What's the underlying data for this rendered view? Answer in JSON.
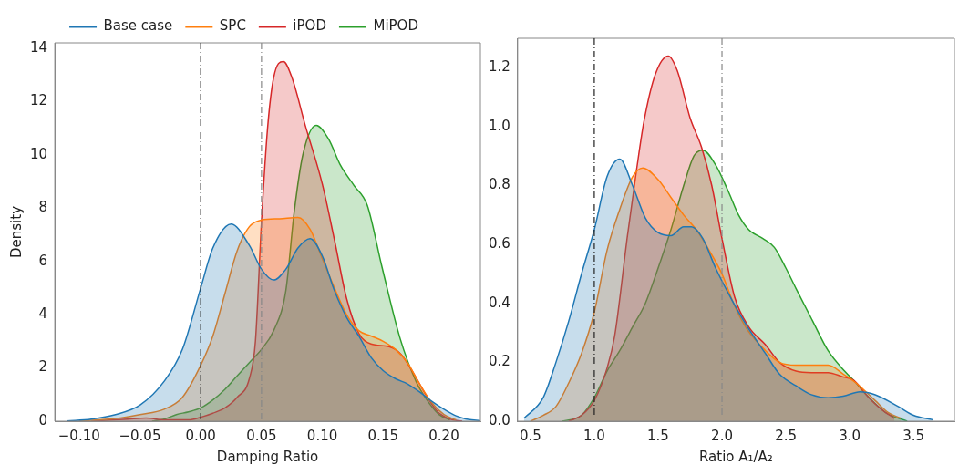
{
  "chart_data": [
    {
      "type": "area",
      "xlabel": "Damping Ratio",
      "ylabel": "Density",
      "legend": "top",
      "grid": false,
      "marker": "none",
      "line_style": "solid",
      "xlim": [
        -0.12,
        0.23
      ],
      "ylim": [
        0,
        14.2
      ],
      "xticks": [
        {
          "value": -0.1,
          "label": "−0.10"
        },
        {
          "value": -0.05,
          "label": "−0.05"
        },
        {
          "value": 0,
          "label": "0.00"
        },
        {
          "value": 0.05,
          "label": "0.05"
        },
        {
          "value": 0.1,
          "label": "0.10"
        },
        {
          "value": 0.15,
          "label": "0.15"
        },
        {
          "value": 0.2,
          "label": "0.20"
        }
      ],
      "yticks": [
        0,
        2,
        4,
        6,
        8,
        10,
        12,
        14
      ],
      "ref_lines": [
        {
          "axis": "x",
          "value": 0,
          "color": "#222222",
          "line_style": "dashed"
        },
        {
          "axis": "x",
          "value": 0.05,
          "color": "#888888",
          "line_style": "dashed"
        }
      ],
      "series": [
        {
          "name": "Base case",
          "color": "#1f77b4",
          "x": [
            -0.11,
            -0.09,
            -0.07,
            -0.05,
            -0.03,
            -0.015,
            0.0,
            0.01,
            0.025,
            0.04,
            0.05,
            0.06,
            0.07,
            0.08,
            0.09,
            0.1,
            0.11,
            0.12,
            0.13,
            0.14,
            0.15,
            0.16,
            0.17,
            0.18,
            0.19,
            0.2,
            0.21,
            0.22,
            0.23
          ],
          "values": [
            0.01,
            0.08,
            0.25,
            0.6,
            1.5,
            2.7,
            5.0,
            6.5,
            7.4,
            6.6,
            5.7,
            5.3,
            5.7,
            6.5,
            6.85,
            6.2,
            4.9,
            3.9,
            3.2,
            2.4,
            1.9,
            1.6,
            1.4,
            1.1,
            0.75,
            0.45,
            0.2,
            0.07,
            0.02
          ]
        },
        {
          "name": "SPC",
          "color": "#ff7f0e",
          "x": [
            -0.1,
            -0.07,
            -0.05,
            -0.03,
            -0.015,
            0.0,
            0.01,
            0.02,
            0.03,
            0.04,
            0.05,
            0.065,
            0.08,
            0.09,
            0.1,
            0.11,
            0.12,
            0.13,
            0.14,
            0.15,
            0.16,
            0.17,
            0.18,
            0.19,
            0.2,
            0.21
          ],
          "values": [
            0.01,
            0.1,
            0.25,
            0.45,
            0.9,
            2.1,
            3.2,
            4.8,
            6.4,
            7.3,
            7.55,
            7.6,
            7.65,
            7.2,
            6.1,
            5.0,
            4.0,
            3.4,
            3.2,
            3.0,
            2.7,
            2.2,
            1.4,
            0.7,
            0.25,
            0.05
          ]
        },
        {
          "name": "iPOD",
          "color": "#d62728",
          "x": [
            -0.09,
            -0.06,
            -0.045,
            -0.03,
            -0.01,
            0.0,
            0.01,
            0.02,
            0.03,
            0.04,
            0.045,
            0.05,
            0.055,
            0.06,
            0.068,
            0.075,
            0.086,
            0.1,
            0.11,
            0.12,
            0.13,
            0.14,
            0.155,
            0.165,
            0.175,
            0.185,
            0.195,
            0.205,
            0.215
          ],
          "values": [
            0.0,
            0.08,
            0.12,
            0.05,
            0.05,
            0.15,
            0.3,
            0.5,
            0.9,
            1.6,
            3.0,
            7.5,
            11.0,
            12.9,
            13.5,
            12.9,
            11.1,
            8.9,
            6.8,
            4.6,
            3.3,
            2.9,
            2.8,
            2.5,
            1.8,
            1.0,
            0.35,
            0.08,
            0.0
          ]
        },
        {
          "name": "MiPOD",
          "color": "#2ca02c",
          "x": [
            -0.04,
            -0.03,
            -0.02,
            -0.01,
            0.0,
            0.01,
            0.02,
            0.03,
            0.04,
            0.05,
            0.06,
            0.07,
            0.077,
            0.084,
            0.095,
            0.105,
            0.115,
            0.126,
            0.137,
            0.149,
            0.164,
            0.177,
            0.186,
            0.196,
            0.205
          ],
          "values": [
            0.0,
            0.08,
            0.25,
            0.35,
            0.5,
            0.8,
            1.2,
            1.7,
            2.2,
            2.7,
            3.4,
            4.9,
            7.9,
            10.0,
            11.1,
            10.6,
            9.6,
            8.85,
            8.1,
            5.8,
            3.1,
            1.5,
            0.8,
            0.25,
            0.05
          ]
        }
      ]
    },
    {
      "type": "area",
      "xlabel": "Ratio A₁/A₂",
      "grid": false,
      "marker": "none",
      "line_style": "solid",
      "xlim": [
        0.4,
        3.82
      ],
      "ylim": [
        0,
        1.3
      ],
      "xticks": [
        {
          "value": 0.5,
          "label": "0.5"
        },
        {
          "value": 1,
          "label": "1.0"
        },
        {
          "value": 1.5,
          "label": "1.5"
        },
        {
          "value": 2,
          "label": "2.0"
        },
        {
          "value": 2.5,
          "label": "2.5"
        },
        {
          "value": 3,
          "label": "3.0"
        },
        {
          "value": 3.5,
          "label": "3.5"
        }
      ],
      "yticks": [
        {
          "value": 0,
          "label": "0.0"
        },
        {
          "value": 0.2,
          "label": "0.2"
        },
        {
          "value": 0.4,
          "label": "0.4"
        },
        {
          "value": 0.6,
          "label": "0.6"
        },
        {
          "value": 0.8,
          "label": "0.8"
        },
        {
          "value": 1,
          "label": "1.0"
        },
        {
          "value": 1.2,
          "label": "1.2"
        }
      ],
      "ref_lines": [
        {
          "axis": "x",
          "value": 1,
          "color": "#222222",
          "line_style": "dashed"
        },
        {
          "axis": "x",
          "value": 2,
          "color": "#888888",
          "line_style": "dashed"
        }
      ],
      "series": [
        {
          "color": "#1f77b4",
          "x": [
            0.45,
            0.6,
            0.7,
            0.8,
            0.9,
            1.0,
            1.1,
            1.2,
            1.3,
            1.4,
            1.5,
            1.6,
            1.7,
            1.76,
            1.85,
            1.95,
            2.08,
            2.2,
            2.34,
            2.45,
            2.58,
            2.7,
            2.83,
            2.95,
            3.08,
            3.2,
            3.38,
            3.5,
            3.65
          ],
          "values": [
            0.01,
            0.08,
            0.2,
            0.34,
            0.5,
            0.65,
            0.83,
            0.89,
            0.8,
            0.69,
            0.64,
            0.63,
            0.66,
            0.66,
            0.62,
            0.52,
            0.41,
            0.32,
            0.23,
            0.16,
            0.12,
            0.09,
            0.08,
            0.085,
            0.1,
            0.09,
            0.05,
            0.02,
            0.005
          ]
        },
        {
          "color": "#ff7f0e",
          "x": [
            0.5,
            0.6,
            0.7,
            0.8,
            0.9,
            1.0,
            1.1,
            1.2,
            1.3,
            1.38,
            1.5,
            1.6,
            1.7,
            1.8,
            1.9,
            2.0,
            2.1,
            2.2,
            2.34,
            2.45,
            2.58,
            2.7,
            2.83,
            2.95,
            3.05,
            3.2,
            3.3,
            3.4
          ],
          "values": [
            0.0,
            0.02,
            0.05,
            0.13,
            0.23,
            0.37,
            0.58,
            0.72,
            0.83,
            0.86,
            0.82,
            0.76,
            0.7,
            0.65,
            0.58,
            0.5,
            0.39,
            0.31,
            0.24,
            0.2,
            0.19,
            0.19,
            0.19,
            0.16,
            0.13,
            0.07,
            0.03,
            0.01
          ]
        },
        {
          "color": "#d62728",
          "x": [
            0.8,
            0.9,
            1.0,
            1.1,
            1.16,
            1.26,
            1.33,
            1.39,
            1.48,
            1.58,
            1.65,
            1.75,
            1.84,
            1.92,
            2.0,
            2.1,
            2.21,
            2.34,
            2.45,
            2.58,
            2.7,
            2.83,
            2.95,
            3.03,
            3.15,
            3.25,
            3.35
          ],
          "values": [
            0.0,
            0.02,
            0.07,
            0.18,
            0.29,
            0.63,
            0.85,
            1.02,
            1.18,
            1.24,
            1.19,
            1.03,
            0.93,
            0.8,
            0.62,
            0.42,
            0.32,
            0.26,
            0.2,
            0.17,
            0.165,
            0.165,
            0.15,
            0.14,
            0.08,
            0.04,
            0.01
          ]
        },
        {
          "color": "#2ca02c",
          "x": [
            0.75,
            0.9,
            1.0,
            1.1,
            1.2,
            1.3,
            1.4,
            1.5,
            1.6,
            1.7,
            1.78,
            1.85,
            1.95,
            2.05,
            2.13,
            2.21,
            2.32,
            2.41,
            2.5,
            2.58,
            2.71,
            2.83,
            2.96,
            3.05,
            3.13,
            3.28,
            3.45
          ],
          "values": [
            0.0,
            0.02,
            0.08,
            0.17,
            0.24,
            0.32,
            0.4,
            0.52,
            0.65,
            0.8,
            0.9,
            0.92,
            0.87,
            0.78,
            0.7,
            0.65,
            0.62,
            0.59,
            0.52,
            0.45,
            0.34,
            0.24,
            0.17,
            0.13,
            0.09,
            0.03,
            0.0
          ]
        }
      ]
    }
  ]
}
